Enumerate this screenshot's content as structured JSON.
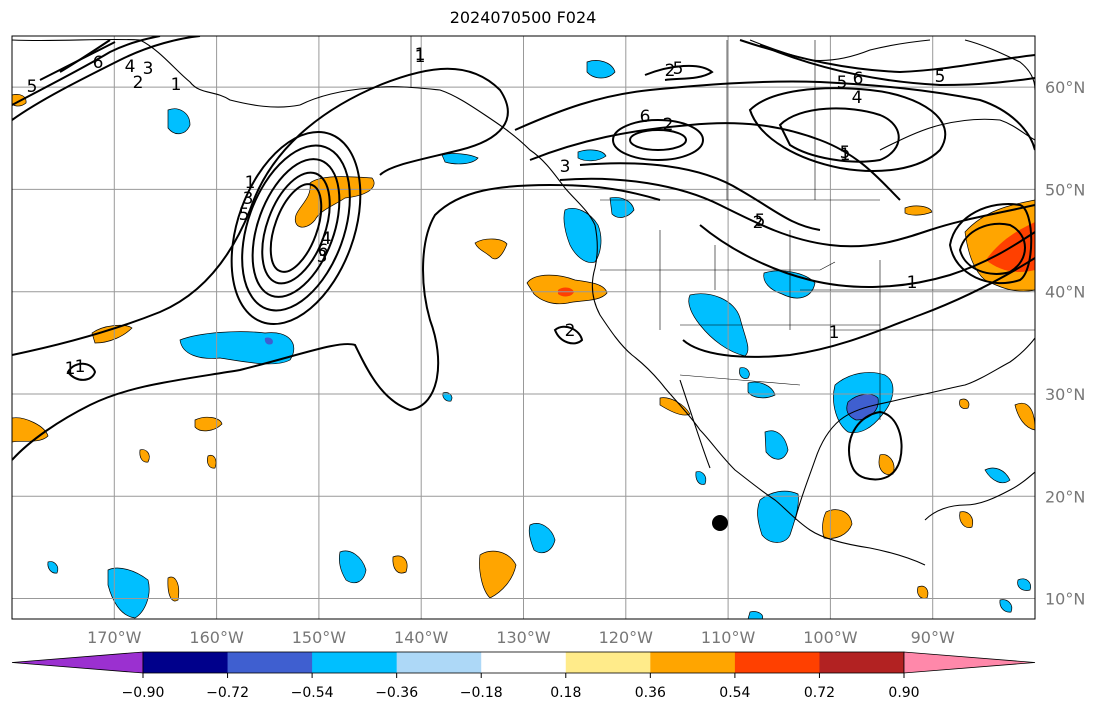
{
  "title": "2024070500 F024",
  "map": {
    "projection": "cylindrical",
    "lon_range": [
      -180,
      -80
    ],
    "lat_range": [
      8,
      65
    ],
    "grid": true
  },
  "longitude_ticks": [
    {
      "value": -170,
      "label": "170°W"
    },
    {
      "value": -160,
      "label": "160°W"
    },
    {
      "value": -150,
      "label": "150°W"
    },
    {
      "value": -140,
      "label": "140°W"
    },
    {
      "value": -130,
      "label": "130°W"
    },
    {
      "value": -120,
      "label": "120°W"
    },
    {
      "value": -110,
      "label": "110°W"
    },
    {
      "value": -100,
      "label": "100°W"
    },
    {
      "value": -90,
      "label": "90°W"
    }
  ],
  "latitude_ticks": [
    {
      "value": 60,
      "label": "60°N"
    },
    {
      "value": 50,
      "label": "50°N"
    },
    {
      "value": 40,
      "label": "40°N"
    },
    {
      "value": 30,
      "label": "30°N"
    },
    {
      "value": 20,
      "label": "20°N"
    },
    {
      "value": 10,
      "label": "10°N"
    }
  ],
  "colorbar": {
    "colors": [
      "#9b30d0",
      "#00008b",
      "#3f5fd0",
      "#00bfff",
      "#add8f7",
      "#ffffff",
      "#ffeb8a",
      "#ffa500",
      "#ff4000",
      "#b22222",
      "#ff88aa"
    ],
    "tick_labels": [
      "−0.90",
      "−0.72",
      "−0.54",
      "−0.36",
      "−0.18",
      "0.18",
      "0.36",
      "0.54",
      "0.72",
      "0.90"
    ]
  },
  "contour_labels": [
    "6",
    "4",
    "3",
    "2",
    "1",
    "5",
    "1",
    "5",
    "1",
    "4",
    "3",
    "2",
    "1",
    "3",
    "5",
    "6",
    "2",
    "5",
    "6",
    "5",
    "4",
    "5",
    "2",
    "1",
    "6",
    "1",
    "5",
    "3",
    "1",
    "1",
    "2",
    "1"
  ]
}
